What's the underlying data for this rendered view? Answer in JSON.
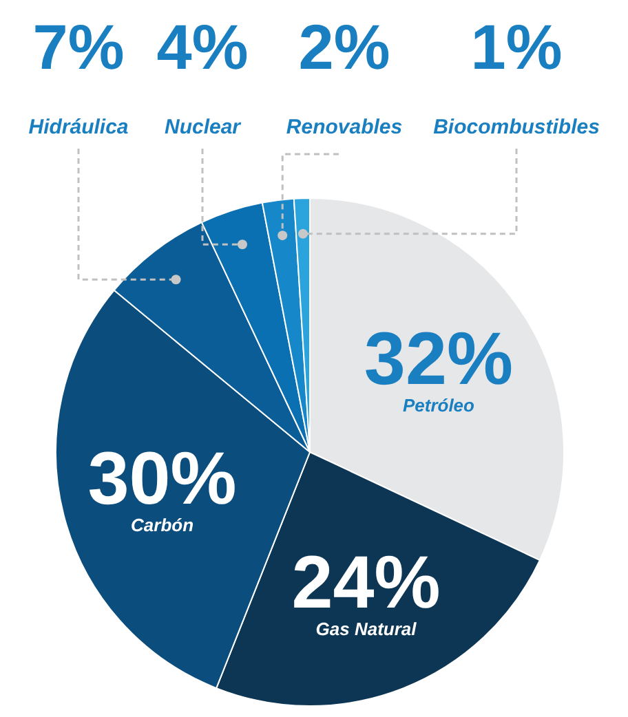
{
  "chart_data": {
    "type": "pie",
    "categories": [
      "Petróleo",
      "Gas Natural",
      "Carbón",
      "Hidráulica",
      "Nuclear",
      "Renovables",
      "Biocombustibles"
    ],
    "values": [
      32,
      24,
      30,
      7,
      4,
      2,
      1
    ],
    "value_labels": [
      "32%",
      "24%",
      "30%",
      "7%",
      "4%",
      "2%",
      "1%"
    ],
    "colors": [
      "#e6e7e8",
      "#0d3654",
      "#0b4d7c",
      "#0a5d96",
      "#0a70b2",
      "#1687c8",
      "#2ba3dc"
    ]
  }
}
